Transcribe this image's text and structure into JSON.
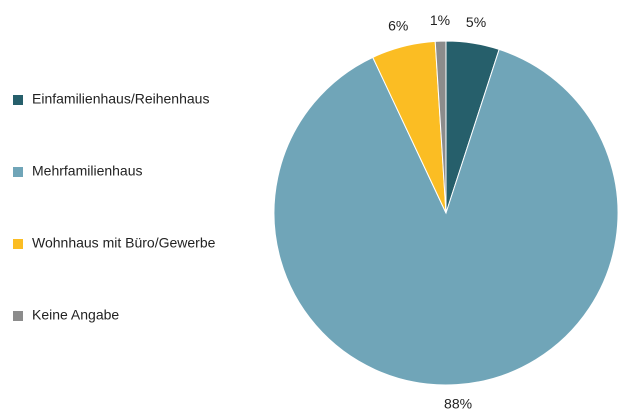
{
  "chart_data": {
    "type": "pie",
    "categories": [
      "Einfamilienhaus/Reihenhaus",
      "Mehrfamilienhaus",
      "Wohnhaus mit Büro/Gewerbe",
      "Keine Angabe"
    ],
    "values": [
      5,
      88,
      6,
      1
    ],
    "value_labels": [
      "5%",
      "88%",
      "6%",
      "1%"
    ],
    "colors": [
      "#265f6b",
      "#70a5b8",
      "#fbbd23",
      "#8c8c8c"
    ],
    "legend": "left"
  }
}
